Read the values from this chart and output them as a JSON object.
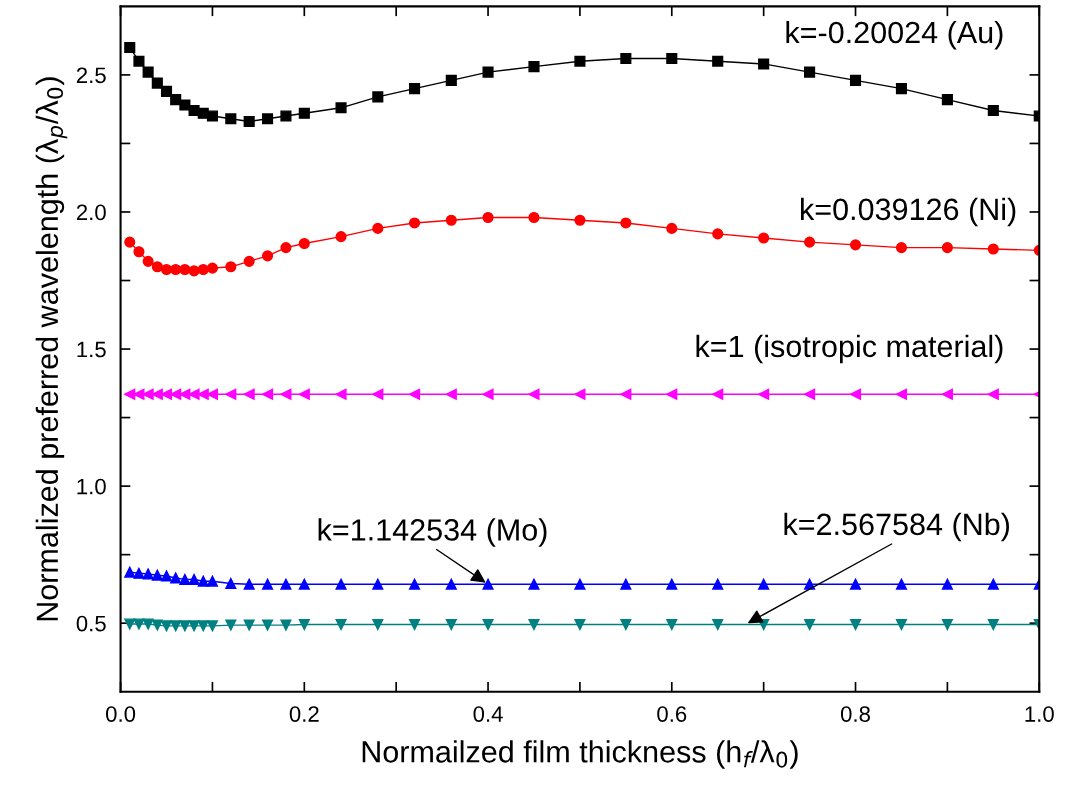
{
  "chart_data": {
    "type": "line",
    "xlabel": "Normailzed film thickness (h$_{f}$/λ$_{0}$)",
    "ylabel": "Normalized preferred wavelength (λ$_{p}$/λ$_{0}$)",
    "x": [
      0.01,
      0.02,
      0.03,
      0.04,
      0.05,
      0.06,
      0.07,
      0.08,
      0.09,
      0.1,
      0.12,
      0.14,
      0.16,
      0.18,
      0.2,
      0.24,
      0.28,
      0.32,
      0.36,
      0.4,
      0.45,
      0.5,
      0.55,
      0.6,
      0.65,
      0.7,
      0.75,
      0.8,
      0.85,
      0.9,
      0.95,
      1.0
    ],
    "series": [
      {
        "color": "#000000",
        "marker": "square",
        "values": [
          2.6,
          2.55,
          2.51,
          2.47,
          2.44,
          2.41,
          2.39,
          2.37,
          2.36,
          2.35,
          2.34,
          2.33,
          2.34,
          2.35,
          2.36,
          2.38,
          2.42,
          2.45,
          2.48,
          2.51,
          2.53,
          2.55,
          2.56,
          2.56,
          2.55,
          2.54,
          2.51,
          2.48,
          2.45,
          2.41,
          2.37,
          2.35
        ]
      },
      {
        "color": "#ff0000",
        "marker": "circle",
        "values": [
          1.89,
          1.855,
          1.82,
          1.8,
          1.79,
          1.79,
          1.79,
          1.785,
          1.79,
          1.795,
          1.8,
          1.82,
          1.84,
          1.87,
          1.885,
          1.91,
          1.94,
          1.96,
          1.97,
          1.98,
          1.98,
          1.97,
          1.96,
          1.94,
          1.92,
          1.905,
          1.89,
          1.88,
          1.87,
          1.87,
          1.865,
          1.86
        ]
      },
      {
        "color": "#ff00ff",
        "marker": "triangle-left",
        "values": [
          1.335,
          1.335,
          1.335,
          1.335,
          1.335,
          1.335,
          1.335,
          1.335,
          1.335,
          1.335,
          1.335,
          1.335,
          1.335,
          1.335,
          1.335,
          1.335,
          1.335,
          1.335,
          1.335,
          1.335,
          1.335,
          1.335,
          1.335,
          1.335,
          1.335,
          1.335,
          1.335,
          1.335,
          1.335,
          1.335,
          1.335,
          1.335
        ]
      },
      {
        "color": "#0000ff",
        "marker": "triangle",
        "values": [
          0.686,
          0.682,
          0.68,
          0.675,
          0.672,
          0.665,
          0.66,
          0.66,
          0.653,
          0.653,
          0.645,
          0.642,
          0.642,
          0.642,
          0.642,
          0.642,
          0.642,
          0.642,
          0.642,
          0.642,
          0.642,
          0.642,
          0.642,
          0.642,
          0.642,
          0.642,
          0.642,
          0.642,
          0.642,
          0.642,
          0.642,
          0.642
        ]
      },
      {
        "color": "#008080",
        "marker": "triangle-down",
        "values": [
          0.497,
          0.497,
          0.497,
          0.493,
          0.49,
          0.49,
          0.49,
          0.49,
          0.49,
          0.49,
          0.493,
          0.493,
          0.493,
          0.493,
          0.495,
          0.495,
          0.495,
          0.495,
          0.495,
          0.495,
          0.495,
          0.495,
          0.495,
          0.495,
          0.495,
          0.495,
          0.495,
          0.495,
          0.495,
          0.495,
          0.495,
          0.495
        ]
      }
    ],
    "annotations": [
      "k=-0.20024 (Au)",
      "k=0.039126 (Ni)",
      "k=1 (isotropic material)",
      {
        "text": "k=1.142534 (Mo)",
        "x": 0.4,
        "y": 0.642
      },
      {
        "text": "k=2.567584 (Nb)",
        "x": 0.68,
        "y": 0.495
      }
    ],
    "xlim": [
      0,
      1.0
    ],
    "ylim": [
      0.25,
      2.75
    ],
    "xticks": [
      {
        "value": 0,
        "label": "0.0"
      },
      {
        "value": 0.1,
        "label": null
      },
      {
        "value": 0.2,
        "label": "0.2"
      },
      {
        "value": 0.3,
        "label": null
      },
      {
        "value": 0.4,
        "label": "0.4"
      },
      {
        "value": 0.5,
        "label": null
      },
      {
        "value": 0.6,
        "label": "0.6"
      },
      {
        "value": 0.7,
        "label": null
      },
      {
        "value": 0.8,
        "label": "0.8"
      },
      {
        "value": 0.9,
        "label": null
      },
      {
        "value": 1.0,
        "label": "1.0"
      }
    ],
    "yticks": [
      {
        "value": 0.5,
        "label": "0.5"
      },
      {
        "value": 0.75,
        "label": null
      },
      {
        "value": 1.0,
        "label": "1.0"
      },
      {
        "value": 1.25,
        "label": null
      },
      {
        "value": 1.5,
        "label": "1.5"
      },
      {
        "value": 1.75,
        "label": null
      },
      {
        "value": 2.0,
        "label": "2.0"
      },
      {
        "value": 2.25,
        "label": null
      },
      {
        "value": 2.5,
        "label": "2.5"
      }
    ],
    "grid": false,
    "legend": false,
    "line_style": "solid"
  }
}
